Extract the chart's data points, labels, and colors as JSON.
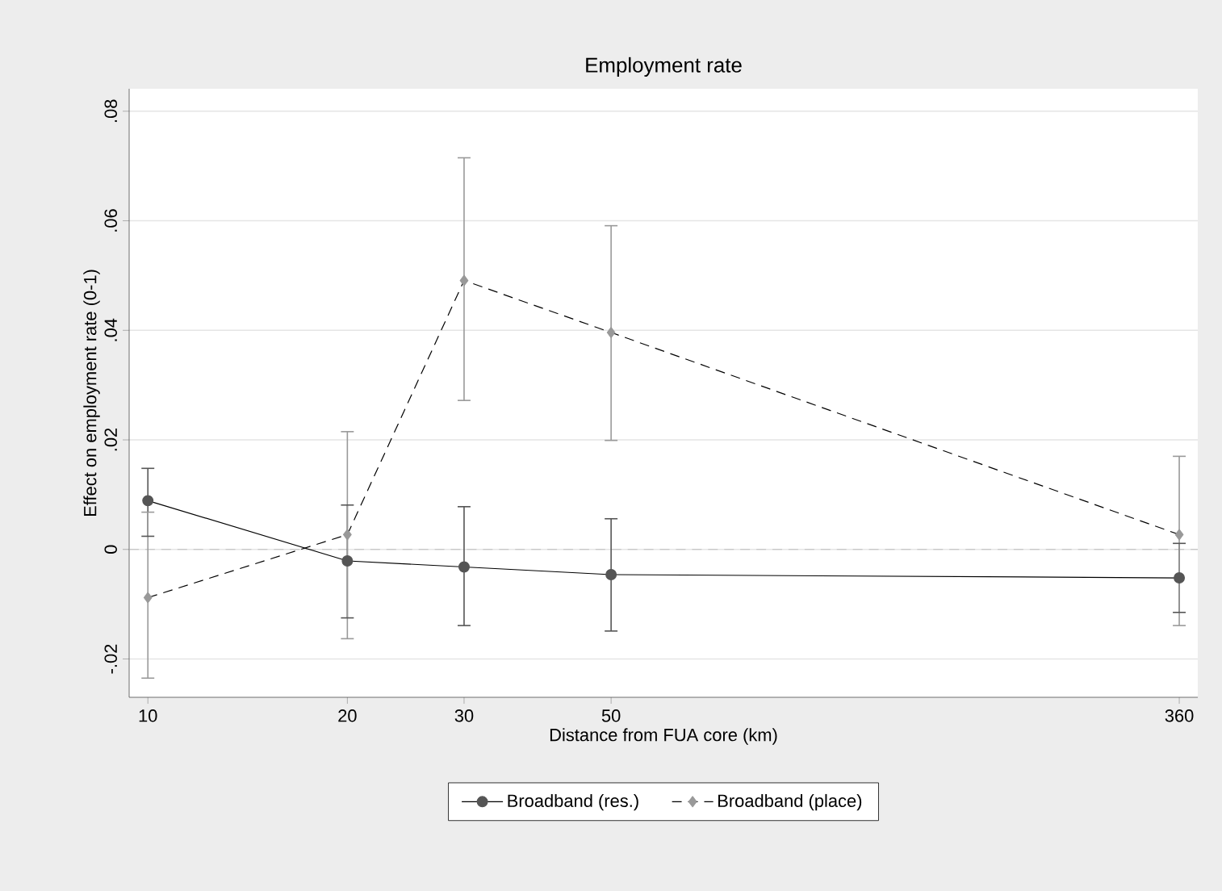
{
  "chart_data": {
    "type": "line",
    "title": "Employment rate",
    "xlabel": "Distance from FUA core (km)",
    "ylabel": "Effect on employment rate (0-1)",
    "x": [
      10,
      20,
      30,
      50,
      360
    ],
    "log": "x",
    "xlim": [
      9.37,
      384
    ],
    "xticks": [
      10,
      20,
      30,
      50,
      360
    ],
    "ylim": [
      -0.027,
      0.0841
    ],
    "yticks": [
      {
        "value": -0.02,
        "label": "-.02"
      },
      {
        "value": 0,
        "label": "0"
      },
      {
        "value": 0.02,
        "label": ".02"
      },
      {
        "value": 0.04,
        "label": ".04"
      },
      {
        "value": 0.06,
        "label": ".06"
      },
      {
        "value": 0.08,
        "label": ".08"
      }
    ],
    "grid": "y",
    "legend": "bottom",
    "ref_lines": [
      {
        "axis": "y",
        "value": 0,
        "color": "#b4b4b4",
        "line_style": "dashed"
      }
    ],
    "series": [
      {
        "name": "Broadband (res.)",
        "color": "#555555",
        "marker": "circle",
        "line_style": "solid",
        "values": [
          0.0089,
          -0.0021,
          -0.0032,
          -0.0046,
          -0.0052
        ],
        "errors": [
          [
            0.0024,
            0.0148
          ],
          [
            -0.0125,
            0.0081
          ],
          [
            -0.0139,
            0.0078
          ],
          [
            -0.0149,
            0.0056
          ],
          [
            -0.0115,
            0.0011
          ]
        ]
      },
      {
        "name": "Broadband (place)",
        "color": "#999999",
        "marker": "diamond",
        "line_style": "dashed",
        "values": [
          -0.0088,
          0.0027,
          0.0491,
          0.0396,
          0.0027
        ],
        "errors": [
          [
            -0.0235,
            0.0068
          ],
          [
            -0.0163,
            0.0215
          ],
          [
            0.0272,
            0.0715
          ],
          [
            0.0199,
            0.0591
          ],
          [
            -0.0139,
            0.017
          ]
        ]
      }
    ]
  }
}
